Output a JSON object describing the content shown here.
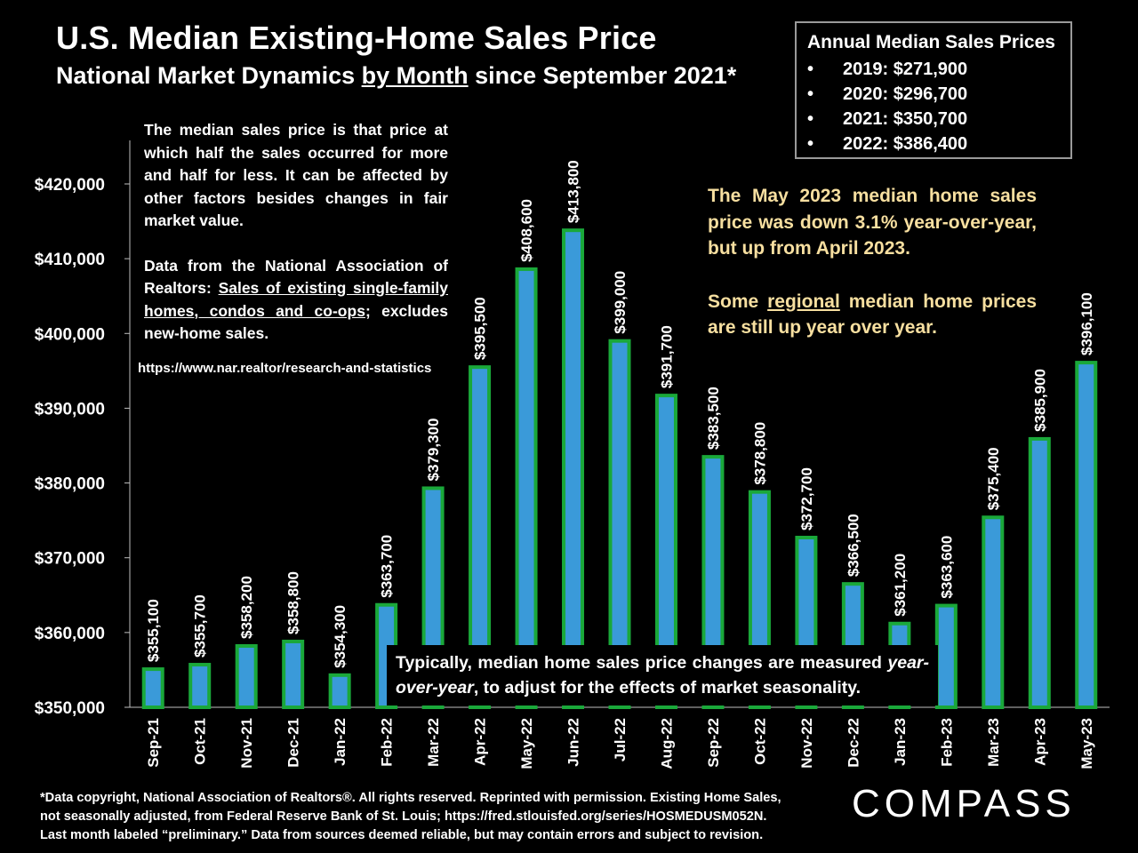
{
  "title": "U.S. Median Existing-Home Sales Price",
  "subtitle": {
    "before": "National Market Dynamics ",
    "underlined": "by Month",
    "after": " since September 2021*"
  },
  "annual_box": {
    "heading": "Annual Median Sales Prices",
    "bullet": "•",
    "items": [
      "2019:  $271,900",
      "2020:  $296,700",
      "2021:  $350,700",
      "2022:  $386,400"
    ]
  },
  "note_left": {
    "p1": "The median sales price is that price at which half the sales occurred for more and half for less. It can be affected by other factors besides changes in fair market value.",
    "p2_before": "Data from the National Association of Realtors: ",
    "p2_underlined": "Sales of existing single-family homes, condos and co-ops",
    "p2_after": "; excludes new-home sales.",
    "url": "https://www.nar.realtor/research-and-statistics"
  },
  "note_right": {
    "p1": "The May 2023 median home sales price was down 3.1% year-over-year, but up from April 2023.",
    "p2_before": "Some ",
    "p2_underlined": "regional",
    "p2_after": " median home prices are still up year over year."
  },
  "note_bottom": {
    "before": "Typically, median home sales price changes are measured ",
    "italic": "year-over-year",
    "after": ", to adjust for the effects of market seasonality."
  },
  "footer": {
    "line1": "*Data copyright, National Association of Realtors®. All rights reserved. Reprinted with permission. Existing Home Sales,",
    "line2": "not seasonally adjusted, from Federal Reserve Bank of St. Louis; https://fred.stlouisfed.org/series/HOSMEDUSM052N.",
    "line3": "Last month labeled “preliminary.” Data from sources deemed reliable, but may contain errors and subject to revision."
  },
  "logo": "COMPASS",
  "colors": {
    "background": "#000000",
    "bar_fill": "#3a9ad9",
    "bar_border": "#1aa83a",
    "text": "#ffffff",
    "highlight_text": "#f7dfa0",
    "axis": "#bfbfbf"
  },
  "chart_data": {
    "type": "bar",
    "title": "U.S. Median Existing-Home Sales Price",
    "xlabel": "",
    "ylabel": "",
    "ylim": [
      350000,
      426000
    ],
    "yticks": [
      350000,
      360000,
      370000,
      380000,
      390000,
      400000,
      410000,
      420000
    ],
    "ytick_labels": [
      "$350,000",
      "$360,000",
      "$370,000",
      "$380,000",
      "$390,000",
      "$400,000",
      "$410,000",
      "$420,000"
    ],
    "grid": false,
    "categories": [
      "Sep-21",
      "Oct-21",
      "Nov-21",
      "Dec-21",
      "Jan-22",
      "Feb-22",
      "Mar-22",
      "Apr-22",
      "May-22",
      "Jun-22",
      "Jul-22",
      "Aug-22",
      "Sep-22",
      "Oct-22",
      "Nov-22",
      "Dec-22",
      "Jan-23",
      "Feb-23",
      "Mar-23",
      "Apr-23",
      "May-23"
    ],
    "values": [
      355100,
      355700,
      358200,
      358800,
      354300,
      363700,
      379300,
      395500,
      408600,
      413800,
      399000,
      391700,
      383500,
      378800,
      372700,
      366500,
      361200,
      363600,
      375400,
      385900,
      396100
    ],
    "data_labels": [
      "$355,100",
      "$355,700",
      "$358,200",
      "$358,800",
      "$354,300",
      "$363,700",
      "$379,300",
      "$395,500",
      "$408,600",
      "$413,800",
      "$399,000",
      "$391,700",
      "$383,500",
      "$378,800",
      "$372,700",
      "$366,500",
      "$361,200",
      "$363,600",
      "$375,400",
      "$385,900",
      "$396,100"
    ]
  }
}
